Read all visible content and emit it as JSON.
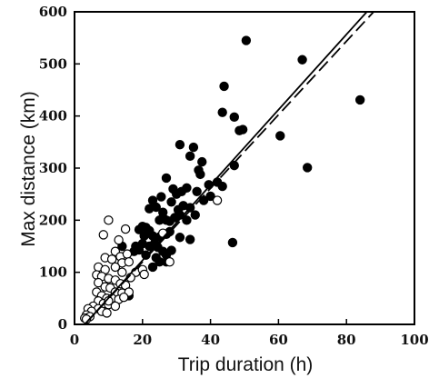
{
  "chart_data": {
    "type": "scatter",
    "title": "",
    "xlabel": "Trip duration (h)",
    "ylabel": "Max distance (km)",
    "xlim": [
      0,
      100
    ],
    "ylim": [
      0,
      600
    ],
    "xticks": [
      0,
      20,
      40,
      60,
      80,
      100
    ],
    "yticks": [
      0,
      100,
      200,
      300,
      400,
      500,
      600
    ],
    "grid": false,
    "colors": {
      "filled": "#000000",
      "open": "#ffffff",
      "line": "#000000"
    },
    "series": [
      {
        "marker": "filled",
        "points": [
          [
            50.5,
            545
          ],
          [
            67,
            508
          ],
          [
            44,
            457
          ],
          [
            84,
            431
          ],
          [
            43.5,
            407
          ],
          [
            47,
            398
          ],
          [
            48.5,
            372
          ],
          [
            49.5,
            374
          ],
          [
            60.5,
            362
          ],
          [
            31,
            345
          ],
          [
            35,
            340
          ],
          [
            34,
            323
          ],
          [
            37.5,
            312
          ],
          [
            36.5,
            296
          ],
          [
            47,
            305
          ],
          [
            68.5,
            301
          ],
          [
            27,
            281
          ],
          [
            30,
            250
          ],
          [
            31.5,
            255
          ],
          [
            33,
            262
          ],
          [
            29,
            260
          ],
          [
            37,
            288
          ],
          [
            39.5,
            268
          ],
          [
            42,
            273
          ],
          [
            43.5,
            265
          ],
          [
            23,
            238
          ],
          [
            24,
            225
          ],
          [
            25.5,
            245
          ],
          [
            28.5,
            235
          ],
          [
            30.5,
            220
          ],
          [
            32,
            228
          ],
          [
            34,
            224
          ],
          [
            36,
            255
          ],
          [
            38,
            238
          ],
          [
            40,
            246
          ],
          [
            22,
            222
          ],
          [
            26,
            215
          ],
          [
            25,
            200
          ],
          [
            26,
            205
          ],
          [
            27,
            200
          ],
          [
            28,
            198
          ],
          [
            29.5,
            205
          ],
          [
            31,
            210
          ],
          [
            33,
            200
          ],
          [
            35.5,
            210
          ],
          [
            19,
            182
          ],
          [
            20,
            188
          ],
          [
            21,
            186
          ],
          [
            22,
            180
          ],
          [
            20.5,
            170
          ],
          [
            23,
            170
          ],
          [
            25,
            168
          ],
          [
            27,
            173
          ],
          [
            28,
            178
          ],
          [
            31,
            167
          ],
          [
            34,
            163
          ],
          [
            18,
            150
          ],
          [
            19,
            143
          ],
          [
            20,
            155
          ],
          [
            22,
            150
          ],
          [
            23.5,
            155
          ],
          [
            24.5,
            148
          ],
          [
            26,
            140
          ],
          [
            27,
            133
          ],
          [
            28.5,
            142
          ],
          [
            17.5,
            140
          ],
          [
            21,
            133
          ],
          [
            24,
            128
          ],
          [
            25,
            120
          ],
          [
            27,
            120
          ],
          [
            23,
            110
          ],
          [
            14,
            150
          ],
          [
            46.5,
            157
          ],
          [
            16,
            55
          ]
        ]
      },
      {
        "marker": "open",
        "points": [
          [
            10,
            200
          ],
          [
            42,
            238
          ],
          [
            8.5,
            172
          ],
          [
            13,
            162
          ],
          [
            15,
            183
          ],
          [
            12,
            140
          ],
          [
            13.5,
            130
          ],
          [
            15.5,
            135
          ],
          [
            9,
            128
          ],
          [
            11,
            125
          ],
          [
            14,
            118
          ],
          [
            16,
            120
          ],
          [
            7,
            110
          ],
          [
            9,
            105
          ],
          [
            12,
            110
          ],
          [
            14,
            100
          ],
          [
            18,
            100
          ],
          [
            20,
            105
          ],
          [
            6.5,
            95
          ],
          [
            8,
            92
          ],
          [
            10,
            88
          ],
          [
            12,
            85
          ],
          [
            13.5,
            78
          ],
          [
            15,
            75
          ],
          [
            7,
            80
          ],
          [
            9,
            72
          ],
          [
            10.5,
            70
          ],
          [
            12,
            62
          ],
          [
            14,
            60
          ],
          [
            16,
            62
          ],
          [
            6.5,
            62
          ],
          [
            8,
            55
          ],
          [
            9.5,
            50
          ],
          [
            11,
            50
          ],
          [
            13,
            48
          ],
          [
            14.5,
            52
          ],
          [
            7,
            45
          ],
          [
            8.5,
            40
          ],
          [
            10,
            38
          ],
          [
            12,
            35
          ],
          [
            5.5,
            35
          ],
          [
            7,
            30
          ],
          [
            8,
            25
          ],
          [
            9.5,
            22
          ],
          [
            4,
            30
          ],
          [
            5,
            25
          ],
          [
            3.5,
            18
          ],
          [
            4.5,
            15
          ],
          [
            3,
            12
          ],
          [
            3.5,
            10
          ],
          [
            26,
            175
          ],
          [
            28,
            120
          ],
          [
            16.5,
            90
          ],
          [
            20.5,
            96
          ],
          [
            10,
            45
          ]
        ]
      }
    ],
    "fit_lines": [
      {
        "style": "solid",
        "x": [
          3,
          86
        ],
        "y": [
          0,
          600
        ]
      },
      {
        "style": "dashed",
        "x": [
          3,
          88
        ],
        "y": [
          0,
          600
        ]
      }
    ]
  }
}
